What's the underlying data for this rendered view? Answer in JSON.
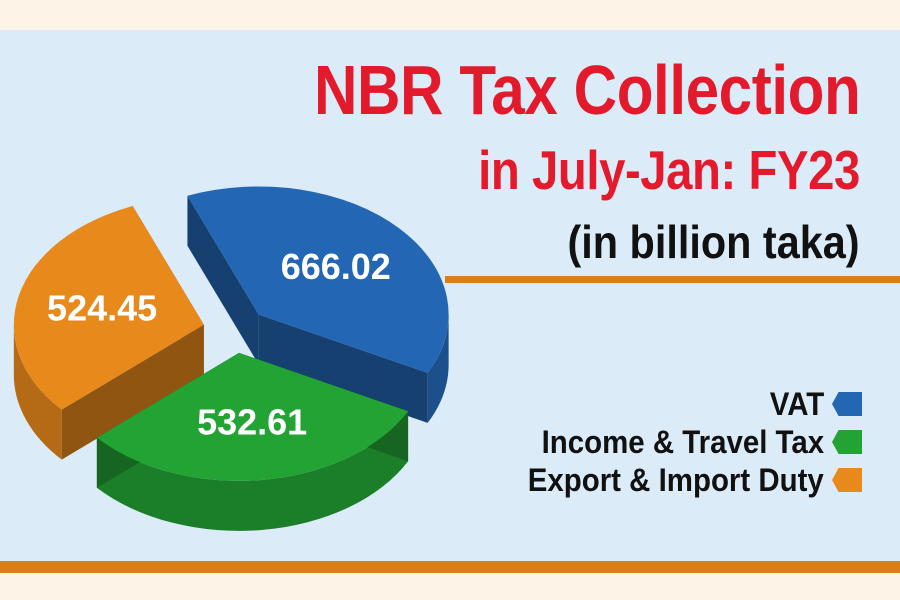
{
  "chart_data": {
    "type": "pie",
    "title": "NBR Tax Collection",
    "subtitle": "in July-Jan: FY23",
    "unit_note": "(in billion taka)",
    "categories": [
      "VAT",
      "Income & Travel Tax",
      "Export & Import Duty"
    ],
    "values": [
      666.02,
      532.61,
      524.45
    ],
    "value_labels": [
      "666.02",
      "532.61",
      "524.45"
    ],
    "colors": [
      "#2367b4",
      "#23a334",
      "#e8891c"
    ],
    "legend_position": "bottom-right"
  }
}
